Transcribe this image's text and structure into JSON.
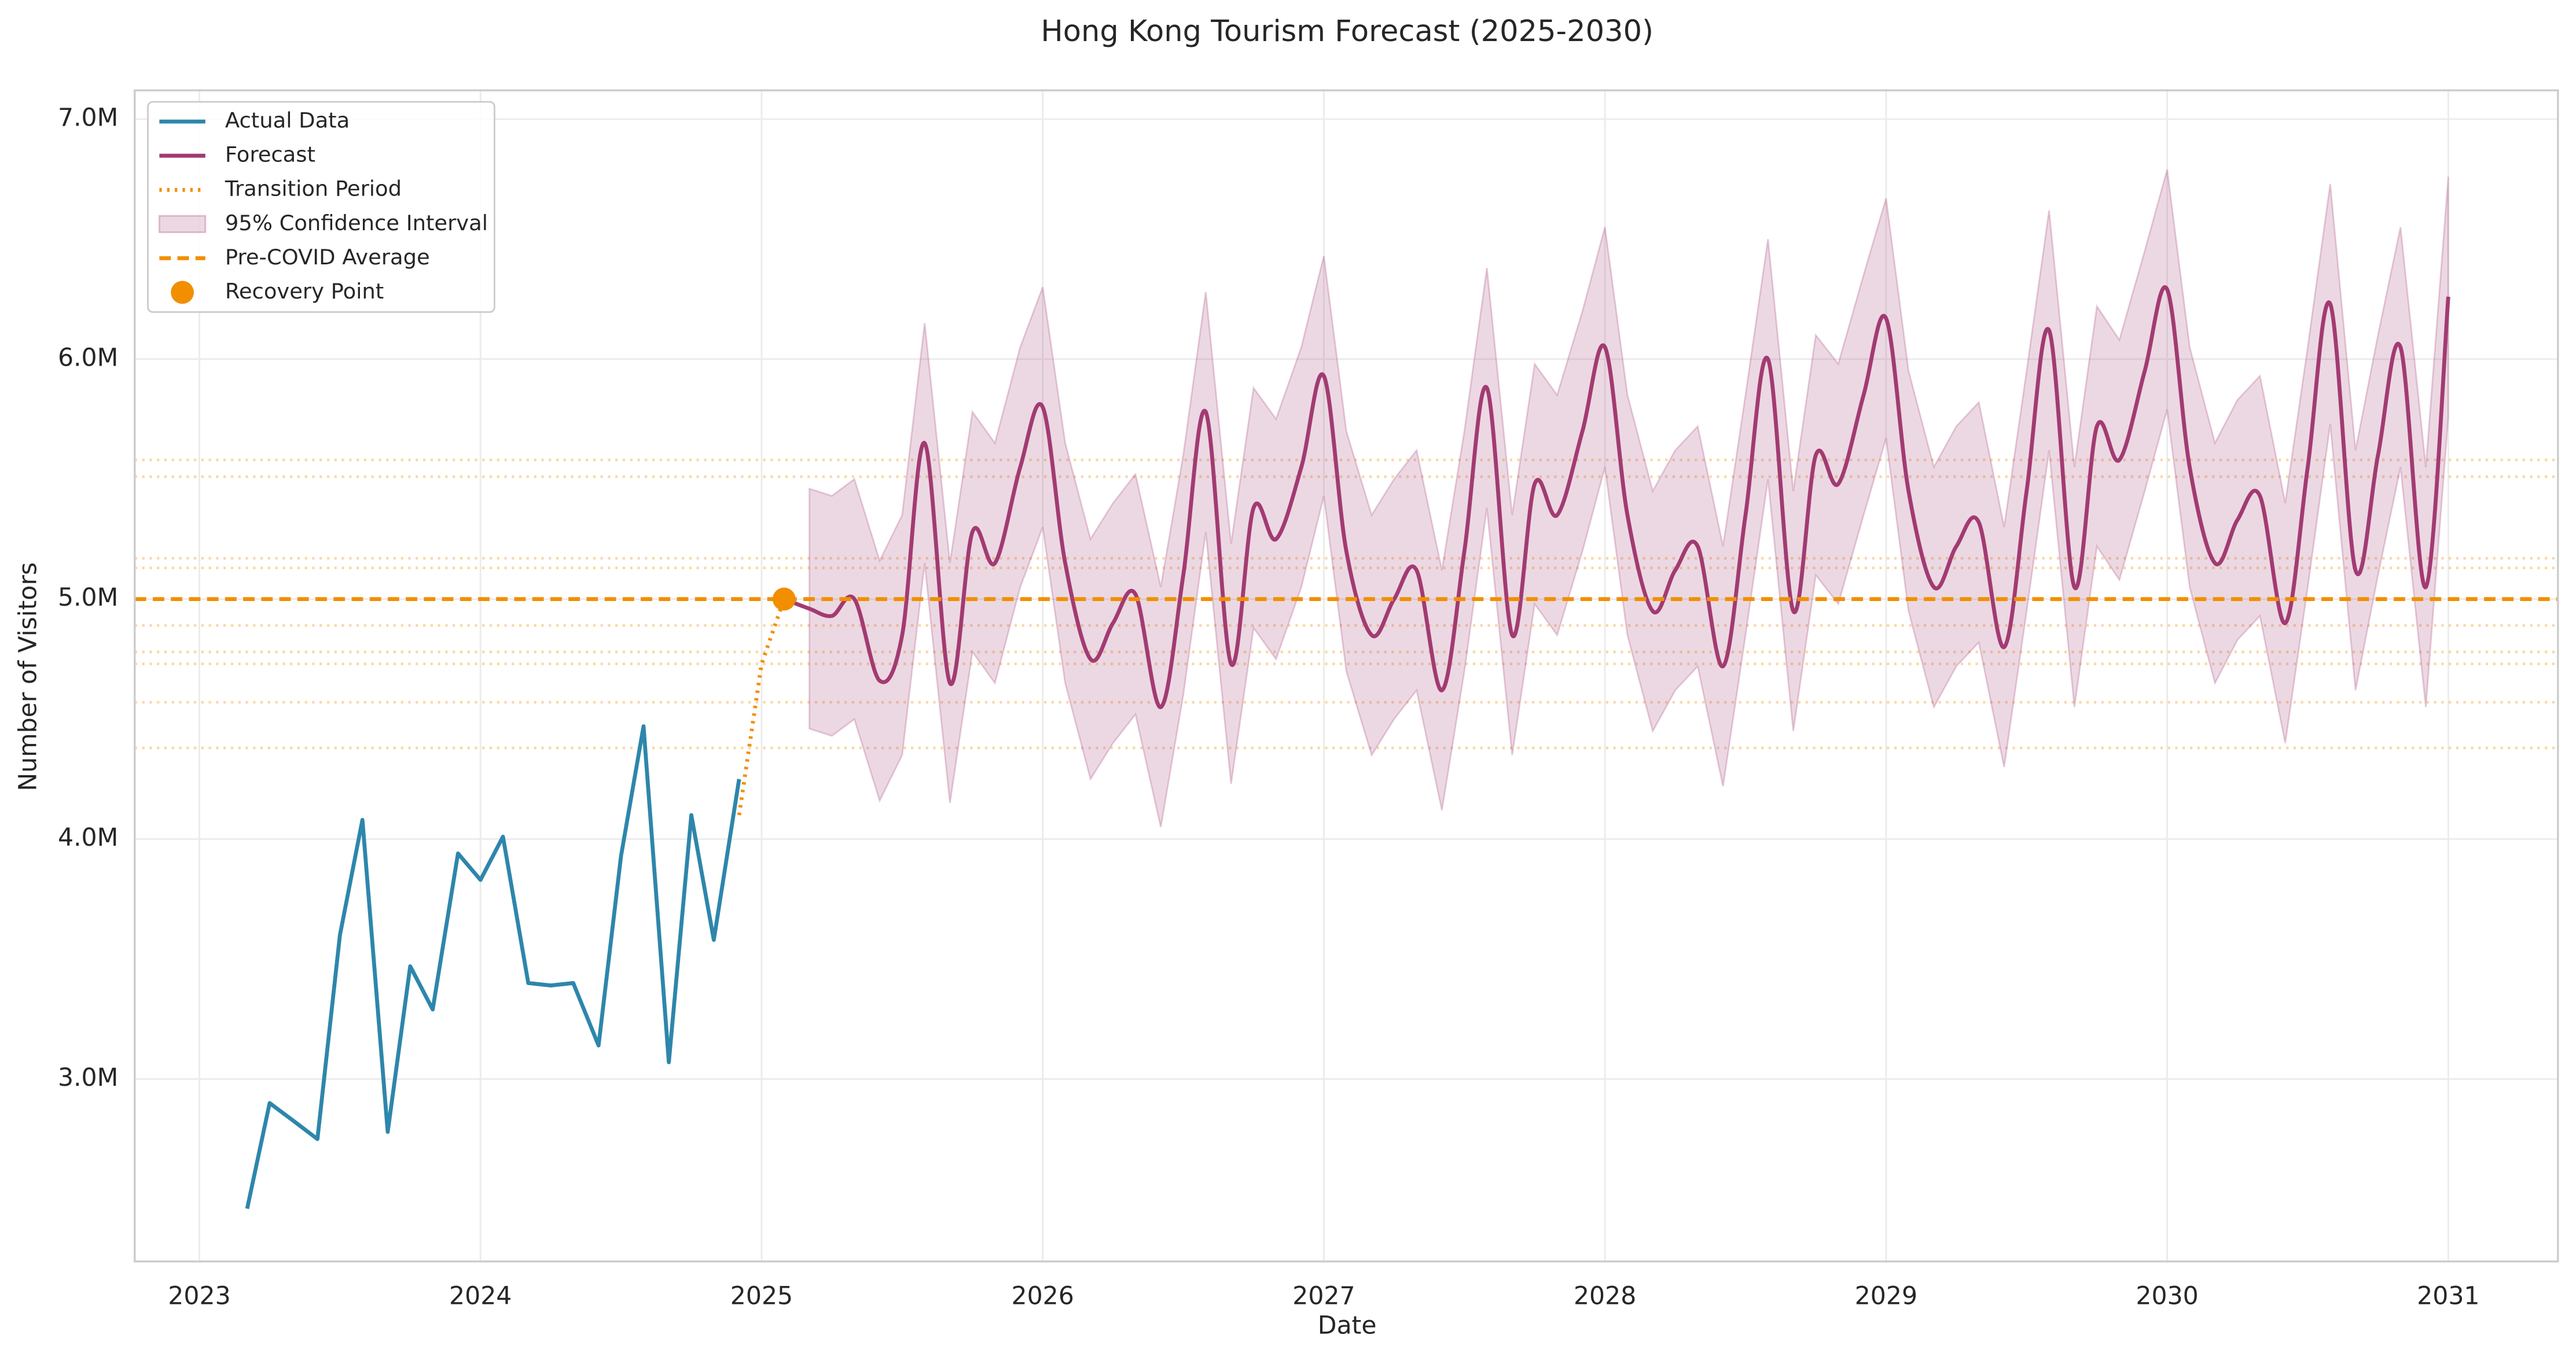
{
  "chart_data": {
    "type": "line",
    "title": "Hong Kong Tourism Forecast (2025-2030)",
    "x_label": "Date",
    "y_label": "Number of Visitors",
    "xlim": [
      2022.77,
      2031.39
    ],
    "xticks": [
      2023,
      2024,
      2025,
      2026,
      2027,
      2028,
      2029,
      2030,
      2031
    ],
    "ylim": [
      2.24,
      7.12
    ],
    "yticks": [
      {
        "value": 3,
        "label": "3.0M"
      },
      {
        "value": 4,
        "label": "4.0M"
      },
      {
        "value": 5,
        "label": "5.0M"
      },
      {
        "value": 6,
        "label": "6.0M"
      },
      {
        "value": 7,
        "label": "7.0M"
      }
    ],
    "grid": true,
    "legend": "upper left",
    "reference_lines": {
      "color": "#f18f01",
      "values": [
        5.58,
        5.51,
        5.17,
        5.13,
        4.89,
        4.78,
        4.73,
        4.57,
        4.38
      ]
    },
    "series": [
      {
        "name": "Actual Data",
        "kind": "line",
        "dash": "solid",
        "color": "#2e86ab",
        "x": [
          2023.17,
          2023.25,
          2023.33,
          2023.42,
          2023.5,
          2023.58,
          2023.67,
          2023.75,
          2023.83,
          2023.92,
          2024.0,
          2024.08,
          2024.17,
          2024.25,
          2024.33,
          2024.42,
          2024.5,
          2024.58,
          2024.67,
          2024.75,
          2024.83,
          2024.92
        ],
        "values": [
          2.46,
          2.9,
          2.83,
          2.75,
          3.6,
          4.08,
          2.78,
          3.47,
          3.29,
          3.94,
          3.83,
          4.01,
          3.4,
          3.39,
          3.4,
          3.14,
          3.93,
          4.47,
          3.07,
          4.1,
          3.58,
          4.25
        ]
      },
      {
        "name": "Forecast",
        "kind": "line",
        "dash": "solid",
        "smooth": true,
        "color": "#a23b72",
        "x": [
          2025.08,
          2025.17,
          2025.25,
          2025.33,
          2025.42,
          2025.5,
          2025.58,
          2025.67,
          2025.75,
          2025.83,
          2025.92,
          2026.0,
          2026.08,
          2026.17,
          2026.25,
          2026.33,
          2026.42,
          2026.5,
          2026.58,
          2026.67,
          2026.75,
          2026.83,
          2026.92,
          2027.0,
          2027.08,
          2027.17,
          2027.25,
          2027.33,
          2027.42,
          2027.5,
          2027.58,
          2027.67,
          2027.75,
          2027.83,
          2027.92,
          2028.0,
          2028.08,
          2028.17,
          2028.25,
          2028.33,
          2028.42,
          2028.5,
          2028.58,
          2028.67,
          2028.75,
          2028.83,
          2028.92,
          2029.0,
          2029.08,
          2029.17,
          2029.25,
          2029.33,
          2029.42,
          2029.5,
          2029.58,
          2029.67,
          2029.75,
          2029.83,
          2029.92,
          2030.0,
          2030.08,
          2030.17,
          2030.25,
          2030.33,
          2030.42,
          2030.5,
          2030.58,
          2030.67,
          2030.75,
          2030.83,
          2030.92,
          2031.0
        ],
        "values": [
          5.0,
          4.96,
          4.93,
          5.0,
          4.66,
          4.85,
          5.65,
          4.65,
          5.28,
          5.15,
          5.55,
          5.8,
          5.15,
          4.75,
          4.9,
          5.02,
          4.55,
          5.1,
          5.78,
          4.73,
          5.38,
          5.25,
          5.55,
          5.93,
          5.2,
          4.85,
          5.0,
          5.12,
          4.62,
          5.2,
          5.88,
          4.85,
          5.48,
          5.35,
          5.7,
          6.05,
          5.35,
          4.95,
          5.12,
          5.22,
          4.72,
          5.35,
          6.0,
          4.95,
          5.6,
          5.48,
          5.85,
          6.17,
          5.45,
          5.05,
          5.22,
          5.32,
          4.8,
          5.45,
          6.12,
          5.05,
          5.72,
          5.58,
          5.95,
          6.29,
          5.55,
          5.15,
          5.33,
          5.43,
          4.9,
          5.55,
          6.23,
          5.12,
          5.6,
          6.05,
          5.05,
          6.26
        ]
      },
      {
        "name": "Transition Period",
        "kind": "line",
        "dash": "dotted",
        "color": "#f18f01",
        "x": [
          2024.92,
          2025.0,
          2025.08
        ],
        "values": [
          4.1,
          4.73,
          5.0
        ]
      },
      {
        "name": "95% Confidence Interval",
        "kind": "band",
        "color": "#a23b72",
        "x": [
          2025.17,
          2025.25,
          2025.33,
          2025.42,
          2025.5,
          2025.58,
          2025.67,
          2025.75,
          2025.83,
          2025.92,
          2026.0,
          2026.08,
          2026.17,
          2026.25,
          2026.33,
          2026.42,
          2026.5,
          2026.58,
          2026.67,
          2026.75,
          2026.83,
          2026.92,
          2027.0,
          2027.08,
          2027.17,
          2027.25,
          2027.33,
          2027.42,
          2027.5,
          2027.58,
          2027.67,
          2027.75,
          2027.83,
          2027.92,
          2028.0,
          2028.08,
          2028.17,
          2028.25,
          2028.33,
          2028.42,
          2028.5,
          2028.58,
          2028.67,
          2028.75,
          2028.83,
          2028.92,
          2029.0,
          2029.08,
          2029.17,
          2029.25,
          2029.33,
          2029.42,
          2029.5,
          2029.58,
          2029.67,
          2029.75,
          2029.83,
          2029.92,
          2030.0,
          2030.08,
          2030.17,
          2030.25,
          2030.33,
          2030.42,
          2030.5,
          2030.58,
          2030.67,
          2030.75,
          2030.83,
          2030.92,
          2031.0
        ],
        "lower": [
          4.46,
          4.43,
          4.5,
          4.16,
          4.35,
          5.15,
          4.15,
          4.78,
          4.65,
          5.05,
          5.3,
          4.65,
          4.25,
          4.4,
          4.52,
          4.05,
          4.6,
          5.28,
          4.23,
          4.88,
          4.75,
          5.05,
          5.43,
          4.7,
          4.35,
          4.5,
          4.62,
          4.12,
          4.7,
          5.38,
          4.35,
          4.98,
          4.85,
          5.2,
          5.55,
          4.85,
          4.45,
          4.62,
          4.72,
          4.22,
          4.85,
          5.5,
          4.45,
          5.1,
          4.98,
          5.35,
          5.67,
          4.95,
          4.55,
          4.72,
          4.82,
          4.3,
          4.95,
          5.62,
          4.55,
          5.22,
          5.08,
          5.45,
          5.79,
          5.05,
          4.65,
          4.83,
          4.93,
          4.4,
          5.05,
          5.73,
          4.62,
          5.1,
          5.55,
          4.55,
          5.76
        ],
        "upper": [
          5.46,
          5.43,
          5.5,
          5.16,
          5.35,
          6.15,
          5.15,
          5.78,
          5.65,
          6.05,
          6.3,
          5.65,
          5.25,
          5.4,
          5.52,
          5.05,
          5.6,
          6.28,
          5.23,
          5.88,
          5.75,
          6.05,
          6.43,
          5.7,
          5.35,
          5.5,
          5.62,
          5.12,
          5.7,
          6.38,
          5.35,
          5.98,
          5.85,
          6.2,
          6.55,
          5.85,
          5.45,
          5.62,
          5.72,
          5.22,
          5.85,
          6.5,
          5.45,
          6.1,
          5.98,
          6.35,
          6.67,
          5.95,
          5.55,
          5.72,
          5.82,
          5.3,
          5.95,
          6.62,
          5.55,
          6.22,
          6.08,
          6.45,
          6.79,
          6.05,
          5.65,
          5.83,
          5.93,
          5.4,
          6.05,
          6.73,
          5.62,
          6.1,
          6.55,
          5.55,
          6.76
        ]
      },
      {
        "name": "Pre-COVID Average",
        "kind": "hline",
        "dash": "dashed",
        "color": "#f18f01",
        "value": 5.0
      },
      {
        "name": "Recovery Point",
        "kind": "point",
        "color": "#f18f01",
        "x": 2025.08,
        "value": 5.0
      }
    ]
  }
}
